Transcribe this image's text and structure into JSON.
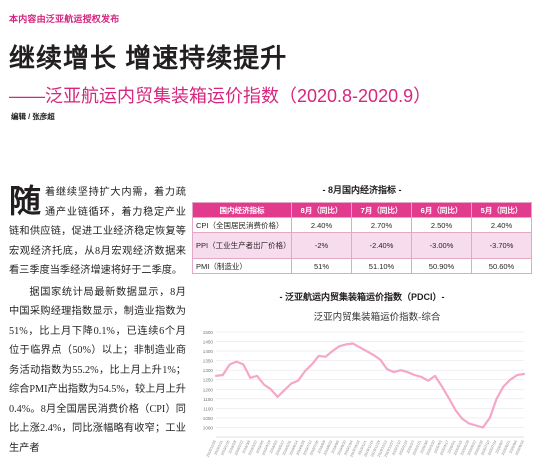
{
  "header": {
    "authorization": "本内容由泛亚航运授权发布"
  },
  "headline": "继续增长 增速持续提升",
  "subtitle": "——泛亚航运内贸集装箱运价指数（2020.8-2020.9）",
  "editor": "编辑 / 张彦超",
  "article": {
    "dropcap": "随",
    "p1": "着继续坚持扩大内需，着力疏通产业链循环，着力稳定产业链和供应链，促进工业经济稳定恢复等宏观经济托底，从8月宏观经济数据来看三季度当季经济增速将好于二季度。",
    "p2": "据国家统计局最新数据显示，8月中国采购经理指数显示，制造业指数为51%，比上月下降0.1%，已连续6个月位于临界点（50%）以上；非制造业商务活动指数为55.2%，比上月上升1%；综合PMI产出指数为54.5%，较上月上升0.4%。8月全国居民消费价格（CPI）同比上涨2.4%，同比涨幅略有收窄；工业生产者"
  },
  "table": {
    "title": "- 8月国内经济指标 -",
    "headers": [
      "国内经济指标",
      "8月（同比）",
      "7月（同比）",
      "6月（同比）",
      "5月（同比）"
    ],
    "rows": [
      [
        "CPI（全国居民消费价格）",
        "2.40%",
        "2.70%",
        "2.50%",
        "2.40%"
      ],
      [
        "PPI（工业生产者出厂价格）",
        "-2%",
        "-2.40%",
        "-3.00%",
        "-3.70%"
      ],
      [
        "PMI（制造业）",
        "51%",
        "51.10%",
        "50.90%",
        "50.60%"
      ]
    ]
  },
  "chart_title": "- 泛亚航运内贸集装箱运价指数（PDCI）-",
  "chart_data": {
    "type": "line",
    "title": "泛亚内贸集装箱运价指数-综合",
    "xlabel": "",
    "ylabel": "",
    "ylim": [
      950,
      1500
    ],
    "yticks": [
      1000,
      1050,
      1100,
      1150,
      1200,
      1250,
      1300,
      1350,
      1400,
      1450,
      1500
    ],
    "grid": true,
    "legend": "none",
    "colors": {
      "line": "#f5a7c9"
    },
    "x": [
      "2018/12/28",
      "2019/1/11",
      "2019/1/25",
      "2019/2/8",
      "2019/2/22",
      "2019/3/8",
      "2019/3/22",
      "2019/4/5",
      "2019/4/19",
      "2019/5/3",
      "2019/5/17",
      "2019/5/31",
      "2019/6/14",
      "2019/6/28",
      "2019/7/12",
      "2019/7/26",
      "2019/8/9",
      "2019/8/23",
      "2019/9/6",
      "2019/9/20",
      "2019/10/4",
      "2019/10/18",
      "2019/11/1",
      "2019/11/15",
      "2019/11/29",
      "2019/12/13",
      "2019/12/27",
      "2020/1/10",
      "2020/1/24",
      "2020/2/7",
      "2020/2/21",
      "2020/3/6",
      "2020/3/20",
      "2020/4/3",
      "2020/4/17",
      "2020/5/1",
      "2020/5/15",
      "2020/5/29",
      "2020/6/12",
      "2020/6/26",
      "2020/7/10",
      "2020/7/24",
      "2020/8/7",
      "2020/8/21",
      "2020/9/4",
      "2020/9/18"
    ],
    "values": [
      1270,
      1275,
      1330,
      1345,
      1330,
      1260,
      1270,
      1225,
      1200,
      1160,
      1195,
      1230,
      1245,
      1295,
      1330,
      1375,
      1370,
      1400,
      1425,
      1435,
      1440,
      1420,
      1400,
      1380,
      1355,
      1305,
      1290,
      1300,
      1290,
      1275,
      1265,
      1245,
      1270,
      1215,
      1155,
      1090,
      1045,
      1020,
      1010,
      1000,
      1050,
      1150,
      1215,
      1250,
      1275,
      1280
    ]
  }
}
